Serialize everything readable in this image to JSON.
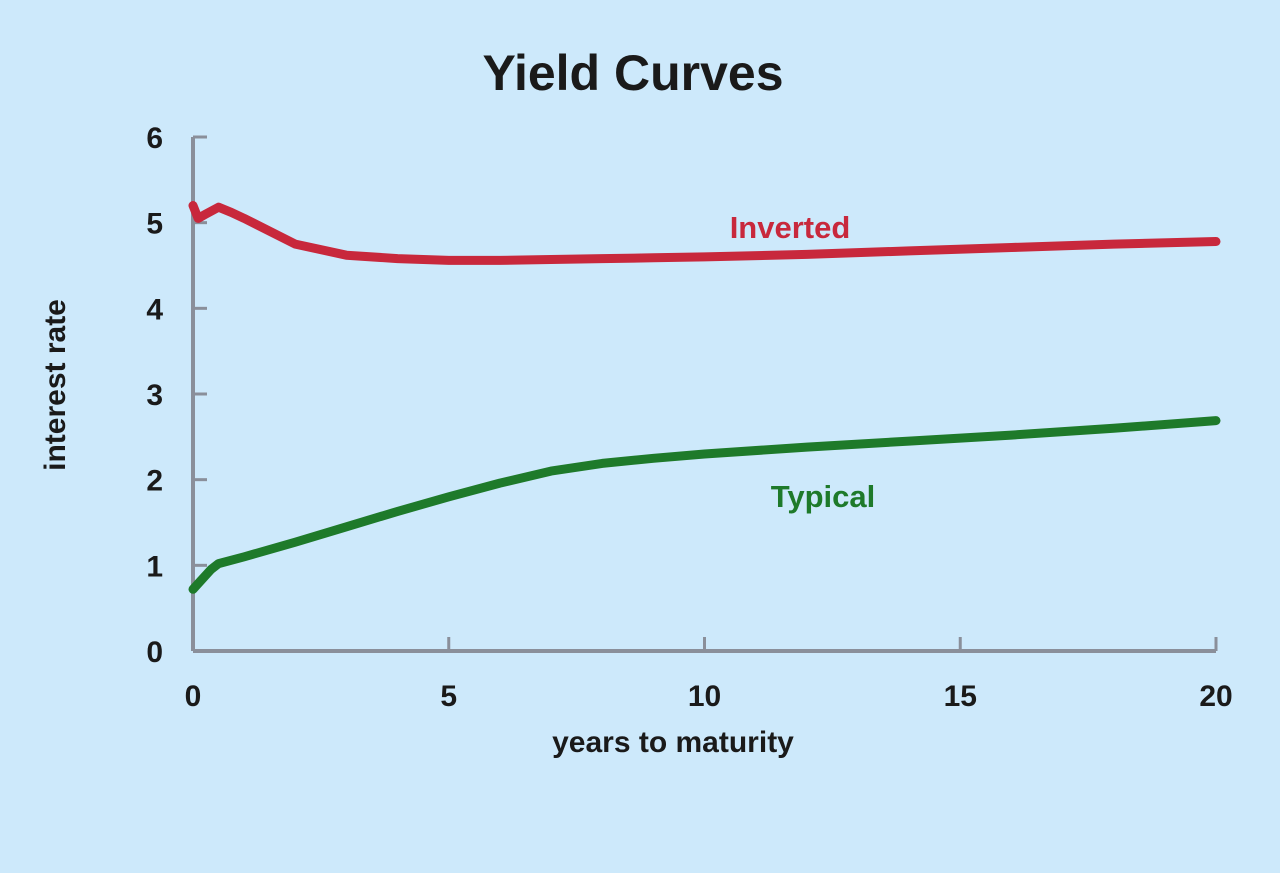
{
  "chart_data": {
    "type": "line",
    "title": "Yield Curves",
    "xlabel": "years to maturity",
    "ylabel": "interest rate",
    "xlim": [
      0,
      20
    ],
    "ylim": [
      0,
      6
    ],
    "xticks": [
      "0",
      "5",
      "10",
      "15",
      "20"
    ],
    "yticks": [
      "0",
      "1",
      "2",
      "3",
      "4",
      "5",
      "6"
    ],
    "grid": false,
    "series": [
      {
        "name": "Inverted",
        "color": "#c8283c",
        "points": [
          [
            0,
            5.2
          ],
          [
            0.1,
            5.05
          ],
          [
            0.25,
            5.1
          ],
          [
            0.5,
            5.18
          ],
          [
            0.75,
            5.12
          ],
          [
            1,
            5.05
          ],
          [
            2,
            4.75
          ],
          [
            3,
            4.62
          ],
          [
            4,
            4.58
          ],
          [
            5,
            4.56
          ],
          [
            6,
            4.56
          ],
          [
            7,
            4.57
          ],
          [
            8,
            4.58
          ],
          [
            9,
            4.59
          ],
          [
            10,
            4.6
          ],
          [
            12,
            4.63
          ],
          [
            14,
            4.67
          ],
          [
            16,
            4.71
          ],
          [
            18,
            4.75
          ],
          [
            20,
            4.78
          ]
        ]
      },
      {
        "name": "Typical",
        "color": "#1e7a2a",
        "points": [
          [
            0,
            0.72
          ],
          [
            0.15,
            0.82
          ],
          [
            0.35,
            0.95
          ],
          [
            0.5,
            1.02
          ],
          [
            1,
            1.1
          ],
          [
            2,
            1.27
          ],
          [
            3,
            1.45
          ],
          [
            4,
            1.63
          ],
          [
            5,
            1.8
          ],
          [
            6,
            1.96
          ],
          [
            7,
            2.1
          ],
          [
            8,
            2.19
          ],
          [
            9,
            2.25
          ],
          [
            10,
            2.3
          ],
          [
            12,
            2.38
          ],
          [
            14,
            2.45
          ],
          [
            16,
            2.52
          ],
          [
            18,
            2.6
          ],
          [
            20,
            2.69
          ]
        ]
      }
    ]
  }
}
